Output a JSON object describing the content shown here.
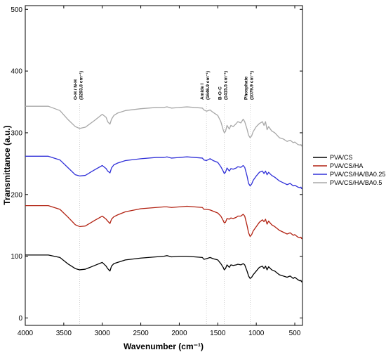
{
  "chart_data": {
    "type": "line",
    "xlabel": "Wavenumber (cm⁻¹)",
    "ylabel": "Transmittance (a.u.)",
    "xlim": [
      4000,
      400
    ],
    "ylim": [
      -12,
      506
    ],
    "x_reversed": true,
    "x_ticks": [
      4000,
      3500,
      3000,
      2500,
      2000,
      1500,
      1000,
      500
    ],
    "y_ticks": [
      0,
      100,
      200,
      300,
      400,
      500
    ],
    "grid": false,
    "legend_position": "right",
    "annotations": [
      {
        "x": 3293.8,
        "line1": "O-H / N-H",
        "line2": "(3293.8 cm⁻¹)"
      },
      {
        "x": 1646.9,
        "line1": "Amide I",
        "line2": "(1646.9 cm⁻¹)"
      },
      {
        "x": 1415.5,
        "line1": "B-O-C",
        "line2": "(1415.5 cm⁻¹)"
      },
      {
        "x": 1079.9,
        "line1": "Phosphate",
        "line2": "(1079.9 cm⁻¹)"
      }
    ],
    "series": [
      {
        "name": "PVA/CS",
        "color": "#000000",
        "x": [
          4000,
          3700,
          3550,
          3450,
          3350,
          3293.8,
          3220,
          3100,
          3000,
          2950,
          2930,
          2900,
          2880,
          2850,
          2800,
          2700,
          2500,
          2300,
          2200,
          2160,
          2100,
          2000,
          1900,
          1800,
          1700,
          1680,
          1646.9,
          1600,
          1560,
          1500,
          1460,
          1430,
          1415.5,
          1400,
          1380,
          1350,
          1330,
          1300,
          1260,
          1240,
          1200,
          1170,
          1150,
          1120,
          1100,
          1079.9,
          1060,
          1040,
          1000,
          960,
          920,
          900,
          880,
          860,
          840,
          800,
          760,
          700,
          650,
          600,
          560,
          520,
          500,
          460,
          430,
          420,
          410
        ],
        "y": [
          102,
          102,
          98,
          88,
          80,
          78,
          79,
          85,
          90,
          84,
          80,
          76,
          84,
          88,
          90,
          94,
          97,
          99,
          100,
          101,
          99,
          100,
          100,
          99,
          98,
          95,
          96,
          98,
          96,
          94,
          88,
          82,
          78,
          80,
          86,
          82,
          86,
          85,
          86,
          87,
          86,
          88,
          86,
          76,
          68,
          64,
          66,
          70,
          76,
          82,
          84,
          80,
          84,
          78,
          83,
          78,
          76,
          70,
          68,
          66,
          68,
          64,
          66,
          62,
          60,
          61,
          58
        ]
      },
      {
        "name": "PVA/CS/HA",
        "color": "#b22212",
        "x": [
          4000,
          3700,
          3550,
          3450,
          3350,
          3293.8,
          3220,
          3100,
          3000,
          2950,
          2930,
          2900,
          2880,
          2850,
          2800,
          2700,
          2500,
          2300,
          2200,
          2160,
          2100,
          2000,
          1900,
          1800,
          1700,
          1680,
          1646.9,
          1600,
          1560,
          1500,
          1460,
          1430,
          1415.5,
          1400,
          1380,
          1350,
          1330,
          1300,
          1260,
          1240,
          1200,
          1170,
          1150,
          1120,
          1100,
          1079.9,
          1060,
          1040,
          1000,
          960,
          920,
          900,
          880,
          860,
          840,
          800,
          760,
          700,
          650,
          600,
          560,
          520,
          500,
          460,
          430,
          420,
          410
        ],
        "y": [
          182,
          182,
          176,
          164,
          151,
          148,
          149,
          158,
          165,
          160,
          157,
          153,
          160,
          164,
          167,
          172,
          177,
          179,
          180,
          180,
          179,
          180,
          181,
          180,
          179,
          176,
          176,
          175,
          173,
          170,
          165,
          158,
          154,
          155,
          161,
          160,
          162,
          161,
          163,
          165,
          165,
          168,
          165,
          150,
          138,
          132,
          135,
          141,
          148,
          155,
          159,
          156,
          160,
          152,
          157,
          151,
          148,
          142,
          139,
          136,
          138,
          134,
          135,
          131,
          130,
          131,
          128
        ]
      },
      {
        "name": "PVA/CS/HA/BA0.25",
        "color": "#3030d8",
        "x": [
          4000,
          3700,
          3550,
          3450,
          3350,
          3293.8,
          3220,
          3100,
          3000,
          2950,
          2930,
          2900,
          2880,
          2850,
          2800,
          2700,
          2500,
          2300,
          2200,
          2160,
          2100,
          2000,
          1900,
          1800,
          1700,
          1680,
          1646.9,
          1600,
          1560,
          1500,
          1460,
          1430,
          1415.5,
          1400,
          1380,
          1350,
          1330,
          1300,
          1260,
          1240,
          1200,
          1170,
          1150,
          1120,
          1100,
          1079.9,
          1060,
          1040,
          1000,
          960,
          920,
          900,
          880,
          860,
          840,
          800,
          760,
          700,
          650,
          600,
          560,
          520,
          500,
          460,
          430,
          420,
          410
        ],
        "y": [
          262,
          262,
          256,
          244,
          232,
          230,
          231,
          240,
          247,
          242,
          238,
          235,
          243,
          248,
          251,
          255,
          258,
          260,
          260,
          261,
          259,
          260,
          261,
          260,
          259,
          256,
          255,
          258,
          255,
          252,
          245,
          238,
          234,
          236,
          243,
          238,
          242,
          241,
          243,
          245,
          244,
          247,
          244,
          230,
          218,
          214,
          217,
          223,
          230,
          236,
          238,
          234,
          238,
          232,
          236,
          231,
          228,
          222,
          219,
          216,
          218,
          214,
          215,
          212,
          211,
          212,
          209
        ]
      },
      {
        "name": "PVA/CS/HA/BA0.5",
        "color": "#a8a8a8",
        "x": [
          4000,
          3700,
          3550,
          3450,
          3350,
          3293.8,
          3220,
          3100,
          3000,
          2950,
          2930,
          2900,
          2880,
          2850,
          2800,
          2700,
          2500,
          2300,
          2200,
          2160,
          2100,
          2000,
          1900,
          1800,
          1700,
          1680,
          1646.9,
          1600,
          1560,
          1500,
          1460,
          1430,
          1415.5,
          1400,
          1380,
          1350,
          1330,
          1300,
          1260,
          1240,
          1200,
          1170,
          1150,
          1120,
          1100,
          1079.9,
          1060,
          1040,
          1000,
          960,
          920,
          900,
          880,
          860,
          840,
          800,
          760,
          700,
          650,
          600,
          560,
          520,
          500,
          460,
          430,
          420,
          410
        ],
        "y": [
          343,
          343,
          336,
          322,
          310,
          307,
          309,
          320,
          330,
          325,
          318,
          314,
          322,
          328,
          332,
          336,
          339,
          341,
          341,
          342,
          340,
          341,
          342,
          341,
          340,
          337,
          335,
          337,
          333,
          328,
          318,
          305,
          300,
          302,
          312,
          306,
          312,
          310,
          315,
          318,
          316,
          322,
          318,
          306,
          296,
          292,
          295,
          302,
          310,
          315,
          318,
          312,
          318,
          305,
          310,
          303,
          300,
          292,
          290,
          286,
          288,
          284,
          285,
          281,
          280,
          281,
          278
        ]
      }
    ]
  }
}
